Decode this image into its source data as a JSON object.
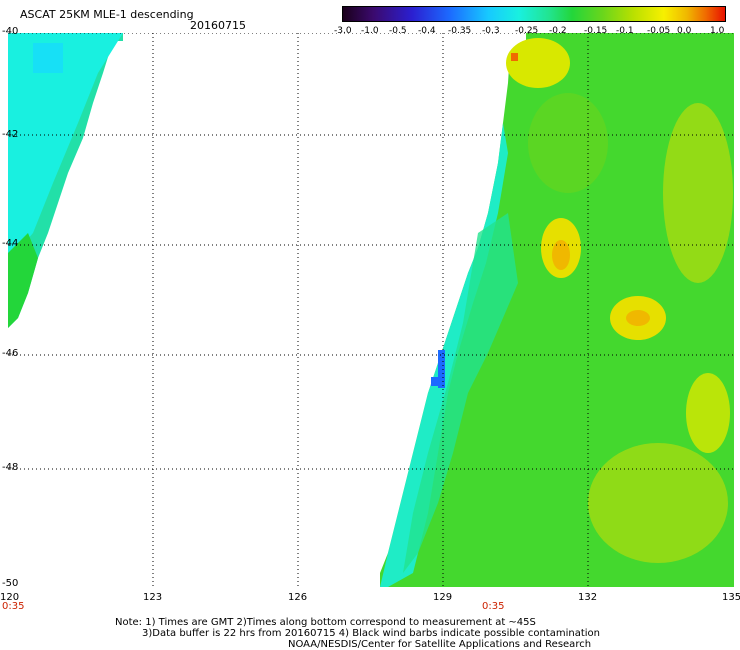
{
  "header": {
    "title": "ASCAT 25KM MLE-1 descending",
    "date": "20160715"
  },
  "colorbar": {
    "ticks": [
      "-3.0",
      "-1.0",
      "-0.5",
      "-0.4",
      "-0.35",
      "-0.3",
      "-0.25",
      "-0.2",
      "-0.15",
      "-0.1",
      "-0.05",
      "0.0",
      "1.0"
    ]
  },
  "axes": {
    "y_labels": [
      "-40",
      "-42",
      "-44",
      "-46",
      "-48",
      "-50"
    ],
    "x_labels": [
      "120",
      "123",
      "126",
      "129",
      "132",
      "135"
    ],
    "time_labels": [
      "0:35",
      "0:35"
    ]
  },
  "map_colors": {
    "cyan": "#19f0e0",
    "green": "#23d63a",
    "yellow": "#f7f000",
    "orange": "#f0b800",
    "blue": "#1c6bff"
  },
  "notes": [
    "Note: 1) Times are GMT 2)Times along bottom correspond to measurement at ~45S",
    "3)Data buffer is 22 hrs from 20160715 4) Black wind barbs indicate possible contamination",
    "NOAA/NESDIS/Center for Satellite Applications and Research"
  ]
}
